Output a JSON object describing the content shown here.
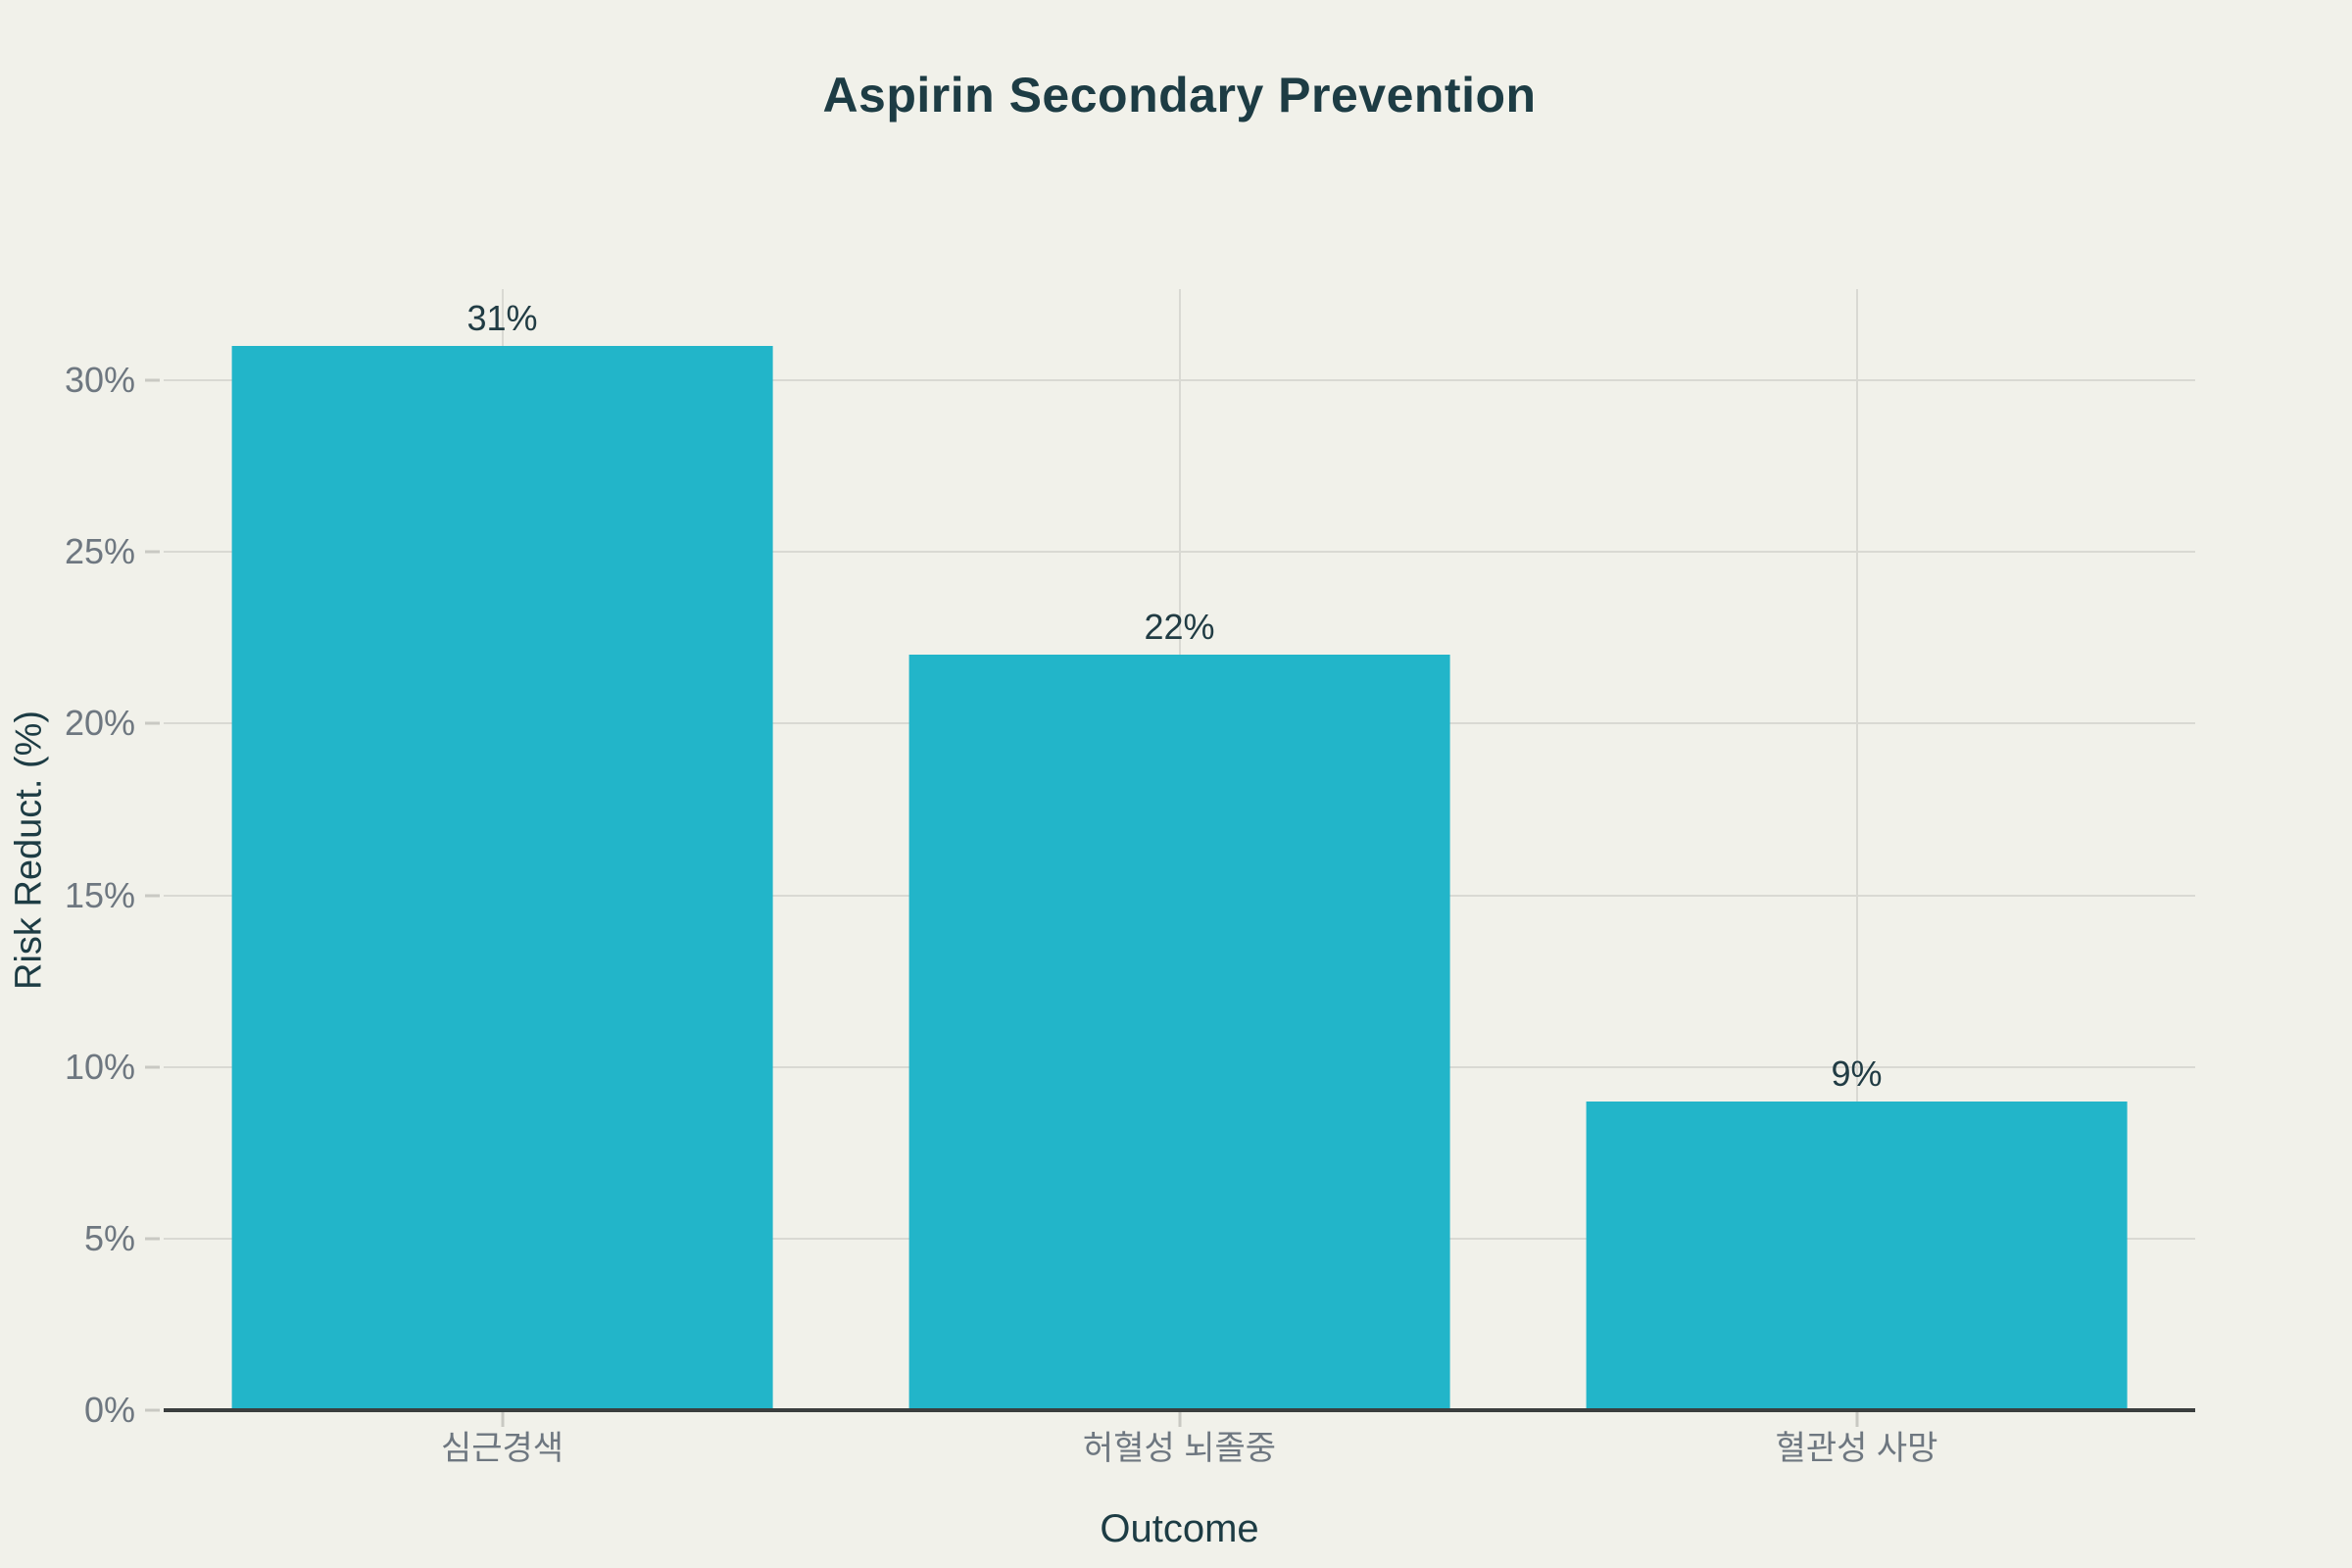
{
  "chart_data": {
    "type": "bar",
    "title": "Aspirin Secondary Prevention",
    "xlabel": "Outcome",
    "ylabel": "Risk Reduct. (%)",
    "categories": [
      "심근경색",
      "허혈성 뇌졸중",
      "혈관성 사망"
    ],
    "values": [
      31,
      22,
      9
    ],
    "bar_labels": [
      "31%",
      "22%",
      "9%"
    ],
    "ylim": [
      0,
      32.66
    ],
    "yticks": [
      0,
      5,
      10,
      15,
      20,
      25,
      30
    ],
    "ytick_labels": [
      "0%",
      "5%",
      "10%",
      "15%",
      "20%",
      "25%",
      "30%"
    ],
    "grid": true,
    "vertical_grid_at_category_centers": true,
    "legend_visible": false,
    "colors": {
      "bar": "#22b5c9",
      "background": "#f1f1ea",
      "grid": "#d9d9d3",
      "axis_line": "#3a3e3e",
      "tick_dash": "#c9c9c3",
      "tick_label": "#6e7780",
      "title": "#1d3c44",
      "axis_title": "#1d3c44",
      "value_label": "#213c44"
    }
  }
}
